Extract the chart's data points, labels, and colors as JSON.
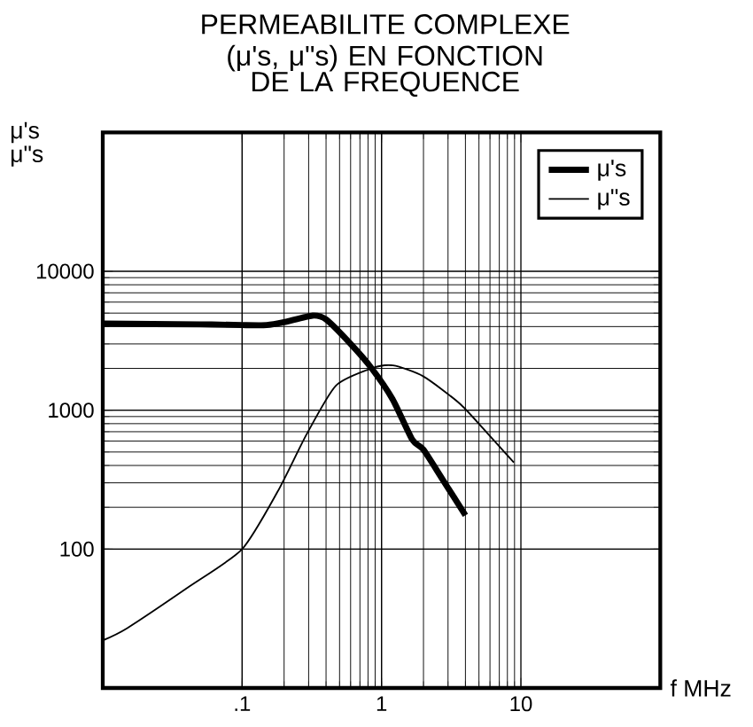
{
  "chart_data": {
    "type": "line",
    "title": "PERMEABILITE COMPLEXE",
    "subtitle": "(μ's, μ\"s) EN FONCTION DE LA FREQUENCE",
    "xlabel": "f MHz",
    "ylabel": "μ's μ\"s",
    "log": "xy",
    "grid": true,
    "legend": "top right",
    "marker": "none",
    "line_style": "solid",
    "xlim": [
      0.01,
      100
    ],
    "ylim": [
      10,
      100000
    ],
    "xticks": [
      {
        "value": 0.1,
        "label": ".1"
      },
      1,
      10
    ],
    "yticks": [
      100,
      1000,
      10000
    ],
    "series": [
      {
        "name": "μ's",
        "color": "#000000",
        "x": [
          0.01,
          0.05,
          0.1,
          0.15,
          0.2,
          0.32,
          0.4,
          0.6,
          0.85,
          1.2,
          1.66,
          2.0,
          2.75,
          4.0
        ],
        "values": [
          4200,
          4150,
          4100,
          4100,
          4300,
          4800,
          4500,
          3000,
          2000,
          1200,
          615,
          520,
          316,
          175
        ]
      },
      {
        "name": "μ\"s",
        "color": "#000000",
        "x": [
          0.01,
          0.015,
          0.042,
          0.1,
          0.18,
          0.29,
          0.47,
          0.85,
          1.21,
          2.0,
          3.7,
          6.0,
          8.9
        ],
        "values": [
          22,
          27,
          54,
          100,
          260,
          670,
          1500,
          2000,
          2100,
          1750,
          1100,
          650,
          420
        ]
      }
    ]
  }
}
